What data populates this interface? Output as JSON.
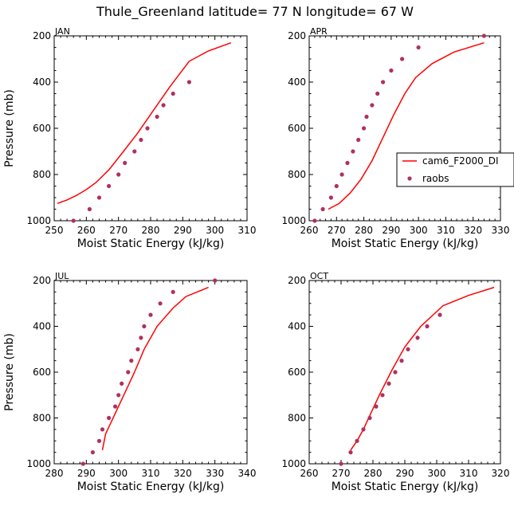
{
  "figure": {
    "title": "Thule_Greenland   latitude= 77 N longitude= 67 W"
  },
  "legend": {
    "model_label": "cam6_F2000_DI",
    "obs_label": "raobs",
    "model_color": "#ff0000",
    "obs_color": "#b03060"
  },
  "chart_data": [
    {
      "type": "line",
      "panel": "JAN",
      "title": "JAN",
      "xlabel": "Moist Static Energy (kJ/kg)",
      "ylabel": "Pressure (mb)",
      "xlim": [
        250,
        310
      ],
      "ylim": [
        1000,
        200
      ],
      "xticks": [
        250,
        260,
        270,
        280,
        290,
        300,
        310
      ],
      "yticks": [
        200,
        400,
        600,
        800,
        1000
      ],
      "series": [
        {
          "name": "cam6_F2000_DI",
          "style": "line",
          "x": [
            251,
            254,
            257,
            260,
            263,
            267,
            271,
            276,
            281,
            286,
            292,
            298,
            305
          ],
          "y": [
            925,
            910,
            890,
            865,
            835,
            780,
            710,
            620,
            520,
            420,
            310,
            265,
            230
          ]
        },
        {
          "name": "raobs",
          "style": "points",
          "x": [
            256,
            261,
            264,
            267,
            270,
            272,
            275,
            277,
            279,
            282,
            284,
            287,
            292
          ],
          "y": [
            1000,
            950,
            900,
            850,
            800,
            750,
            700,
            650,
            600,
            550,
            500,
            450,
            400
          ]
        }
      ]
    },
    {
      "type": "line",
      "panel": "APR",
      "title": "APR",
      "xlabel": "Moist Static Energy (kJ/kg)",
      "ylabel": "",
      "xlim": [
        260,
        330
      ],
      "ylim": [
        1000,
        200
      ],
      "xticks": [
        260,
        270,
        280,
        290,
        300,
        310,
        320,
        330
      ],
      "yticks": [
        200,
        400,
        600,
        800,
        1000
      ],
      "series": [
        {
          "name": "cam6_F2000_DI",
          "style": "line",
          "x": [
            267,
            271,
            275,
            279,
            283,
            287,
            291,
            295,
            299,
            305,
            313,
            324
          ],
          "y": [
            950,
            925,
            880,
            820,
            740,
            640,
            540,
            450,
            380,
            320,
            270,
            230
          ]
        },
        {
          "name": "raobs",
          "style": "points",
          "x": [
            262,
            265,
            268,
            270,
            272,
            274,
            276,
            278,
            280,
            281,
            283,
            285,
            287,
            290,
            294,
            300,
            324
          ],
          "y": [
            1000,
            950,
            900,
            850,
            800,
            750,
            700,
            650,
            600,
            550,
            500,
            450,
            400,
            350,
            300,
            250,
            200
          ]
        }
      ]
    },
    {
      "type": "line",
      "panel": "JUL",
      "title": "JUL",
      "xlabel": "Moist Static Energy (kJ/kg)",
      "ylabel": "Pressure (mb)",
      "xlim": [
        280,
        340
      ],
      "ylim": [
        1000,
        200
      ],
      "xticks": [
        280,
        290,
        300,
        310,
        320,
        330,
        340
      ],
      "yticks": [
        200,
        400,
        600,
        800,
        1000
      ],
      "series": [
        {
          "name": "cam6_F2000_DI",
          "style": "line",
          "x": [
            295,
            296,
            299,
            302,
            305,
            308,
            312,
            317,
            321,
            328
          ],
          "y": [
            940,
            870,
            780,
            690,
            600,
            500,
            400,
            320,
            270,
            230
          ]
        },
        {
          "name": "raobs",
          "style": "points",
          "x": [
            289,
            292,
            294,
            295,
            297,
            299,
            300,
            301,
            303,
            304,
            306,
            307,
            308,
            310,
            313,
            317,
            330
          ],
          "y": [
            1000,
            950,
            900,
            850,
            800,
            750,
            700,
            650,
            600,
            550,
            500,
            450,
            400,
            350,
            300,
            250,
            200
          ]
        }
      ]
    },
    {
      "type": "line",
      "panel": "OCT",
      "title": "OCT",
      "xlabel": "Moist Static Energy (kJ/kg)",
      "ylabel": "",
      "xlim": [
        260,
        320
      ],
      "ylim": [
        1000,
        200
      ],
      "xticks": [
        260,
        270,
        280,
        290,
        300,
        310,
        320
      ],
      "yticks": [
        200,
        400,
        600,
        800,
        1000
      ],
      "series": [
        {
          "name": "cam6_F2000_DI",
          "style": "line",
          "x": [
            273,
            275,
            277,
            279,
            282,
            286,
            290,
            295,
            302,
            310,
            318
          ],
          "y": [
            940,
            900,
            850,
            790,
            700,
            590,
            490,
            400,
            310,
            265,
            230
          ]
        },
        {
          "name": "raobs",
          "style": "points",
          "x": [
            270,
            273,
            275,
            277,
            279,
            281,
            283,
            285,
            287,
            289,
            291,
            294,
            297,
            301
          ],
          "y": [
            1000,
            950,
            900,
            850,
            800,
            750,
            700,
            650,
            600,
            550,
            500,
            450,
            400,
            350
          ]
        }
      ]
    }
  ]
}
